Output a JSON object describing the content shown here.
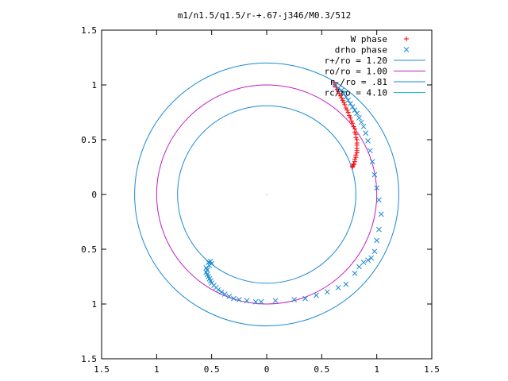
{
  "chart_data": {
    "type": "scatter",
    "title": "m1/n1.5/q1.5/r-+.67-j346/M0.3/512",
    "xlabel": "",
    "ylabel": "",
    "xlim": [
      -1.5,
      1.5
    ],
    "ylim": [
      -1.5,
      1.5
    ],
    "x_ticks": [
      -1.5,
      -1,
      -0.5,
      0,
      0.5,
      1,
      1.5
    ],
    "y_ticks": [
      -1.5,
      -1,
      -0.5,
      0,
      0.5,
      1,
      1.5
    ],
    "x_tick_labels": [
      "1.5",
      "1",
      "0.5",
      "0",
      "0.5",
      "1",
      "1.5"
    ],
    "y_tick_labels": [
      "1.5",
      "1",
      "0.5",
      "0",
      "0.5",
      "1",
      "1.5"
    ],
    "grid": false,
    "legend_position": "top-right",
    "legend": [
      {
        "label": "W phase",
        "marker": "+",
        "color": "#ff0000"
      },
      {
        "label": "drho phase",
        "marker": "x",
        "color": "#1a8ad4"
      },
      {
        "label": "r+/ro = 1.20",
        "marker": "line",
        "color": "#1a8ad4"
      },
      {
        "label": "ro/ro = 1.00",
        "marker": "line",
        "color": "#c020c0"
      },
      {
        "label": "r-/ro = .81",
        "marker": "line",
        "color": "#1a8ad4"
      },
      {
        "label": "rc/ro = 4.10",
        "marker": "line",
        "color": "#20c0d0"
      }
    ],
    "circles": [
      {
        "name": "r+/ro = 1.20",
        "radius": 1.2,
        "color": "#1a8ad4"
      },
      {
        "name": "ro/ro = 1.00",
        "radius": 1.0,
        "color": "#c020c0"
      },
      {
        "name": "r-/ro = .81",
        "radius": 0.81,
        "color": "#1a8ad4"
      }
    ],
    "series": [
      {
        "name": "W phase",
        "marker": "+",
        "color": "#ff0000",
        "x": [
          0.61,
          0.62,
          0.63,
          0.64,
          0.65,
          0.66,
          0.67,
          0.68,
          0.69,
          0.7,
          0.71,
          0.72,
          0.73,
          0.74,
          0.75,
          0.76,
          0.77,
          0.78,
          0.79,
          0.8,
          0.8,
          0.81,
          0.81,
          0.82,
          0.82,
          0.82,
          0.82,
          0.82,
          0.82,
          0.81,
          0.81,
          0.8,
          0.8,
          0.79,
          0.79,
          0.78,
          0.78
        ],
        "y": [
          1.02,
          1.0,
          0.98,
          0.96,
          0.94,
          0.92,
          0.9,
          0.88,
          0.86,
          0.84,
          0.82,
          0.79,
          0.77,
          0.75,
          0.72,
          0.7,
          0.67,
          0.65,
          0.62,
          0.6,
          0.57,
          0.55,
          0.52,
          0.5,
          0.47,
          0.45,
          0.42,
          0.4,
          0.38,
          0.36,
          0.34,
          0.32,
          0.3,
          0.28,
          0.27,
          0.26,
          0.25
        ]
      },
      {
        "name": "drho phase",
        "marker": "x",
        "color": "#1a8ad4",
        "x": [
          0.62,
          0.65,
          0.68,
          0.7,
          0.72,
          0.74,
          0.76,
          0.78,
          0.8,
          0.82,
          0.84,
          0.86,
          0.88,
          0.9,
          0.92,
          0.94,
          0.96,
          0.98,
          1.0,
          1.02,
          1.04,
          1.02,
          1.0,
          0.98,
          0.95,
          0.92,
          0.88,
          0.84,
          0.8,
          0.72,
          0.65,
          0.55,
          0.45,
          0.35,
          0.25,
          0.08,
          -0.05,
          -0.1,
          -0.18,
          -0.25,
          -0.3,
          -0.34,
          -0.38,
          -0.41,
          -0.44,
          -0.46,
          -0.48,
          -0.5,
          -0.51,
          -0.52,
          -0.53,
          -0.54,
          -0.55,
          -0.54,
          -0.55,
          -0.52,
          -0.5,
          -0.53,
          -0.51
        ],
        "y": [
          1.0,
          0.97,
          0.95,
          0.92,
          0.89,
          0.86,
          0.83,
          0.8,
          0.77,
          0.74,
          0.7,
          0.66,
          0.62,
          0.56,
          0.49,
          0.4,
          0.3,
          0.18,
          0.06,
          -0.05,
          -0.18,
          -0.32,
          -0.42,
          -0.52,
          -0.58,
          -0.6,
          -0.62,
          -0.66,
          -0.72,
          -0.82,
          -0.85,
          -0.89,
          -0.92,
          -0.95,
          -0.96,
          -0.97,
          -0.98,
          -0.98,
          -0.97,
          -0.96,
          -0.95,
          -0.93,
          -0.91,
          -0.89,
          -0.87,
          -0.85,
          -0.83,
          -0.81,
          -0.79,
          -0.77,
          -0.75,
          -0.73,
          -0.71,
          -0.69,
          -0.67,
          -0.65,
          -0.63,
          -0.62,
          -0.61
        ]
      }
    ]
  }
}
